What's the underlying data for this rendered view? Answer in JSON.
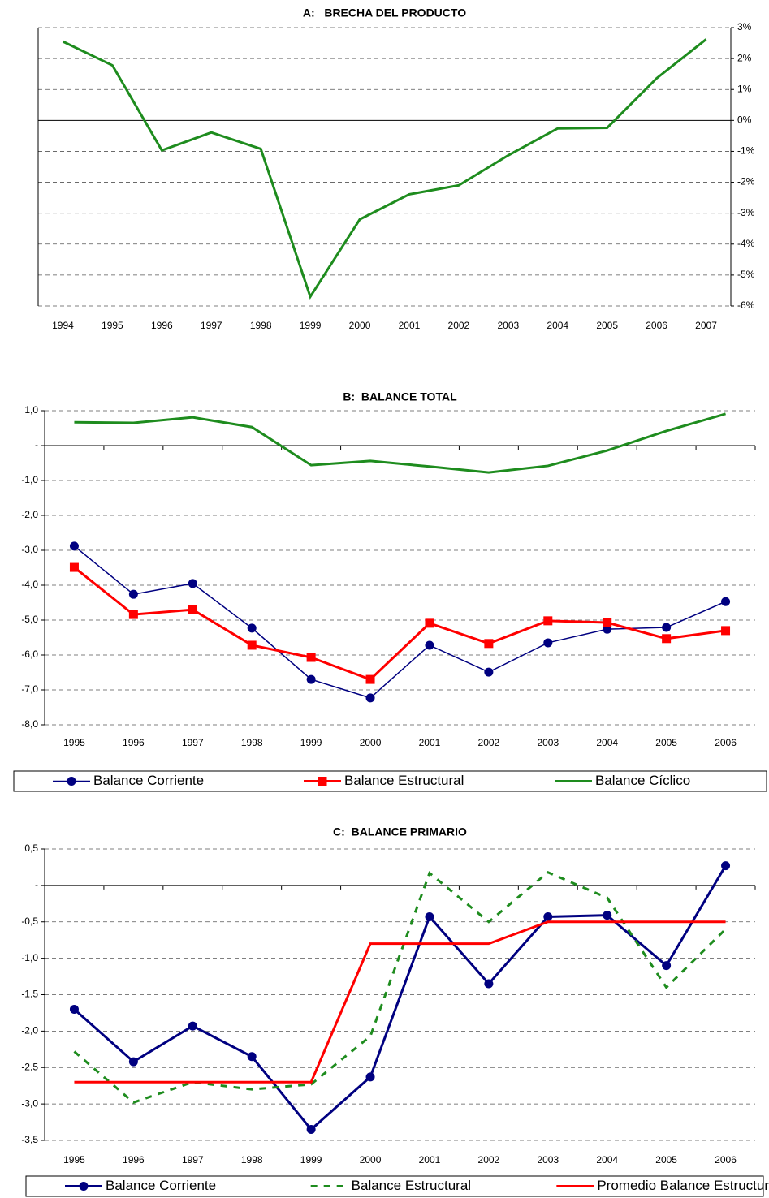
{
  "chart_data": [
    {
      "type": "line",
      "title": "A:   BRECHA DEL PRODUCTO",
      "categories": [
        "1994",
        "1995",
        "1996",
        "1997",
        "1998",
        "1999",
        "2000",
        "2001",
        "2002",
        "2003",
        "2004",
        "2005",
        "2006",
        "2007"
      ],
      "values": [
        2.55,
        1.78,
        -0.97,
        -0.39,
        -0.92,
        -5.7,
        -3.2,
        -2.39,
        -2.1,
        -1.13,
        -0.26,
        -0.24,
        1.36,
        2.62
      ],
      "color": "#1e8c1e",
      "line_width": 3,
      "ylim": [
        -6,
        3
      ],
      "yticks": [
        {
          "value": 3,
          "label": "3%"
        },
        {
          "value": 2,
          "label": "2%"
        },
        {
          "value": 1,
          "label": "1%"
        },
        {
          "value": 0,
          "label": "0%"
        },
        {
          "value": -1,
          "label": "-1%"
        },
        {
          "value": -2,
          "label": "-2%"
        },
        {
          "value": -3,
          "label": "-3%"
        },
        {
          "value": -4,
          "label": "-4%"
        },
        {
          "value": -5,
          "label": "-5%"
        },
        {
          "value": -6,
          "label": "-6%"
        }
      ],
      "grid": true,
      "y_axis_side": "right"
    },
    {
      "type": "line",
      "title": "B:  BALANCE TOTAL",
      "categories": [
        "1995",
        "1996",
        "1997",
        "1998",
        "1999",
        "2000",
        "2001",
        "2002",
        "2003",
        "2004",
        "2005",
        "2006"
      ],
      "series": [
        {
          "name": "Balance Corriente",
          "color": "#000080",
          "marker": "circle",
          "line_width": 1.5,
          "values": [
            -2.88,
            -4.26,
            -3.95,
            -5.23,
            -6.7,
            -7.23,
            -5.72,
            -6.49,
            -5.65,
            -5.26,
            -5.21,
            -4.47
          ]
        },
        {
          "name": "Balance Estructural",
          "color": "#ff0000",
          "marker": "square",
          "line_width": 3,
          "values": [
            -3.49,
            -4.84,
            -4.7,
            -5.72,
            -6.07,
            -6.7,
            -5.09,
            -5.67,
            -5.02,
            -5.07,
            -5.53,
            -5.3
          ]
        },
        {
          "name": "Balance Cíclico",
          "color": "#1e8c1e",
          "line_width": 3,
          "values": [
            0.67,
            0.65,
            0.81,
            0.53,
            -0.56,
            -0.44,
            -0.6,
            -0.77,
            -0.58,
            -0.14,
            0.42,
            0.91
          ]
        }
      ],
      "ylim": [
        -8,
        1
      ],
      "yticks": [
        {
          "value": 1,
          "label": "1,0"
        },
        {
          "value": 0,
          "label": "-"
        },
        {
          "value": -1,
          "label": "-1,0"
        },
        {
          "value": -2,
          "label": "-2,0"
        },
        {
          "value": -3,
          "label": "-3,0"
        },
        {
          "value": -4,
          "label": "-4,0"
        },
        {
          "value": -5,
          "label": "-5,0"
        },
        {
          "value": -6,
          "label": "-6,0"
        },
        {
          "value": -7,
          "label": "-7,0"
        },
        {
          "value": -8,
          "label": "-8,0"
        }
      ],
      "grid": true,
      "y_axis_side": "left",
      "legend": "bottom"
    },
    {
      "type": "line",
      "title": "C:  BALANCE PRIMARIO",
      "categories": [
        "1995",
        "1996",
        "1997",
        "1998",
        "1999",
        "2000",
        "2001",
        "2002",
        "2003",
        "2004",
        "2005",
        "2006"
      ],
      "series": [
        {
          "name": "Balance Corriente",
          "color": "#000080",
          "marker": "circle",
          "line_width": 3,
          "values": [
            -1.7,
            -2.42,
            -1.93,
            -2.35,
            -3.35,
            -2.63,
            -0.43,
            -1.35,
            -0.43,
            -0.41,
            -1.1,
            0.27
          ]
        },
        {
          "name": "Balance Estructural",
          "color": "#1e8c1e",
          "line_style": "dashed",
          "line_width": 3,
          "values": [
            -2.28,
            -2.98,
            -2.7,
            -2.8,
            -2.73,
            -2.07,
            0.17,
            -0.5,
            0.18,
            -0.17,
            -1.4,
            -0.6
          ]
        },
        {
          "name": "Promedio Balance Estructural",
          "color": "#ff0000",
          "line_width": 3,
          "values": [
            -2.7,
            -2.7,
            -2.7,
            -2.7,
            -2.7,
            -0.8,
            -0.8,
            -0.8,
            -0.5,
            -0.5,
            -0.5,
            -0.5
          ]
        }
      ],
      "ylim": [
        -3.5,
        0.5
      ],
      "yticks": [
        {
          "value": 0.5,
          "label": "0,5"
        },
        {
          "value": 0,
          "label": "-"
        },
        {
          "value": -0.5,
          "label": "-0,5"
        },
        {
          "value": -1,
          "label": "-1,0"
        },
        {
          "value": -1.5,
          "label": "-1,5"
        },
        {
          "value": -2,
          "label": "-2,0"
        },
        {
          "value": -2.5,
          "label": "-2,5"
        },
        {
          "value": -3,
          "label": "-3,0"
        },
        {
          "value": -3.5,
          "label": "-3,5"
        }
      ],
      "grid": true,
      "y_axis_side": "left",
      "legend": "bottom"
    }
  ]
}
